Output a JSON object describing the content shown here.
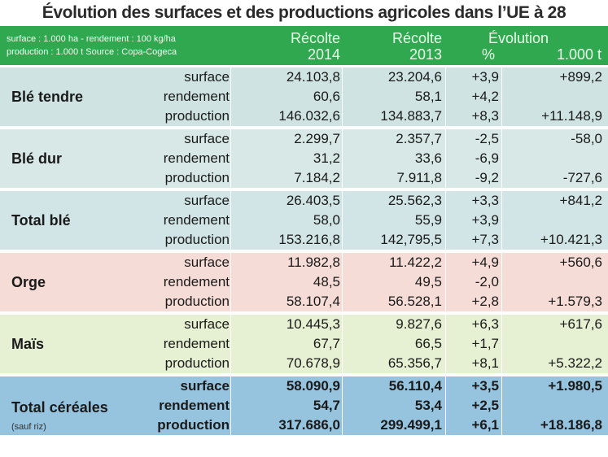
{
  "title": "Évolution des surfaces et des productions agricoles dans l’UE à 28",
  "header": {
    "meta_line1": "surface : 1.000 ha - rendement : 100 kg/ha",
    "meta_line2": "production : 1.000 t   Source : Copa-Cogeca",
    "col_2014_line1": "Récolte",
    "col_2014_line2": "2014",
    "col_2013_line1": "Récolte",
    "col_2013_line2": "2013",
    "col_evo_title": "Évolution",
    "col_pct": "%",
    "col_abs": "1.000 t"
  },
  "colors": {
    "header": "#2fa84f",
    "ble_tendre": "#cfe4e2",
    "ble_dur": "#d7e8e6",
    "total_ble": "#d1e4e6",
    "orge": "#f5dcd6",
    "mais": "#e6f0d2",
    "total_cereales": "#96c3dd"
  },
  "groups": [
    {
      "name": "Blé tendre",
      "sub": "",
      "rows": [
        {
          "label": "surface",
          "v2014": "24.103,8",
          "v2013": "23.204,6",
          "pct": "+3,9",
          "abs": "+899,2"
        },
        {
          "label": "rendement",
          "v2014": "60,6",
          "v2013": "58,1",
          "pct": "+4,2",
          "abs": ""
        },
        {
          "label": "production",
          "v2014": "146.032,6",
          "v2013": "134.883,7",
          "pct": "+8,3",
          "abs": "+11.148,9"
        }
      ]
    },
    {
      "name": "Blé dur",
      "sub": "",
      "rows": [
        {
          "label": "surface",
          "v2014": "2.299,7",
          "v2013": "2.357,7",
          "pct": "-2,5",
          "abs": "-58,0"
        },
        {
          "label": "rendement",
          "v2014": "31,2",
          "v2013": "33,6",
          "pct": "-6,9",
          "abs": ""
        },
        {
          "label": "production",
          "v2014": "7.184,2",
          "v2013": "7.911,8",
          "pct": "-9,2",
          "abs": "-727,6"
        }
      ]
    },
    {
      "name": "Total blé",
      "sub": "",
      "rows": [
        {
          "label": "surface",
          "v2014": "26.403,5",
          "v2013": "25.562,3",
          "pct": "+3,3",
          "abs": "+841,2"
        },
        {
          "label": "rendement",
          "v2014": "58,0",
          "v2013": "55,9",
          "pct": "+3,9",
          "abs": ""
        },
        {
          "label": "production",
          "v2014": "153.216,8",
          "v2013": "142,795,5",
          "pct": "+7,3",
          "abs": "+10.421,3"
        }
      ]
    },
    {
      "name": "Orge",
      "sub": "",
      "rows": [
        {
          "label": "surface",
          "v2014": "11.982,8",
          "v2013": "11.422,2",
          "pct": "+4,9",
          "abs": "+560,6"
        },
        {
          "label": "rendement",
          "v2014": "48,5",
          "v2013": "49,5",
          "pct": "-2,0",
          "abs": ""
        },
        {
          "label": "production",
          "v2014": "58.107,4",
          "v2013": "56.528,1",
          "pct": "+2,8",
          "abs": "+1.579,3"
        }
      ]
    },
    {
      "name": "Maïs",
      "sub": "",
      "rows": [
        {
          "label": "surface",
          "v2014": "10.445,3",
          "v2013": "9.827,6",
          "pct": "+6,3",
          "abs": "+617,6"
        },
        {
          "label": "rendement",
          "v2014": "67,7",
          "v2013": "66,5",
          "pct": "+1,7",
          "abs": ""
        },
        {
          "label": "production",
          "v2014": "70.678,9",
          "v2013": "65.356,7",
          "pct": "+8,1",
          "abs": "+5.322,2"
        }
      ]
    },
    {
      "name": "Total céréales",
      "sub": "(sauf riz)",
      "rows": [
        {
          "label": "surface",
          "v2014": "58.090,9",
          "v2013": "56.110,4",
          "pct": "+3,5",
          "abs": "+1.980,5"
        },
        {
          "label": "rendement",
          "v2014": "54,7",
          "v2013": "53,4",
          "pct": "+2,5",
          "abs": ""
        },
        {
          "label": "production",
          "v2014": "317.686,0",
          "v2013": "299.499,1",
          "pct": "+6,1",
          "abs": "+18.186,8"
        }
      ]
    }
  ]
}
